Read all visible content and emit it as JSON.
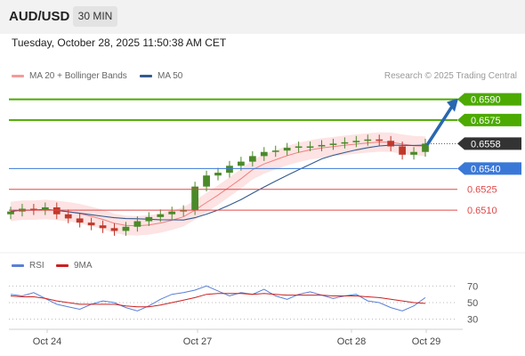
{
  "header": {
    "symbol": "AUD/USD",
    "timeframe": "30 MIN",
    "datetime": "Tuesday, October 28, 2025 11:50:38 AM CET"
  },
  "legend": {
    "ma20_label": "MA 20 + Bollinger Bands",
    "ma50_label": "MA 50",
    "credit": "Research © 2025 Trading Central"
  },
  "rsi_legend": {
    "rsi_label": "RSI",
    "ma_label": "9MA"
  },
  "colors": {
    "resistance": "#4caa00",
    "current": "#333333",
    "pivot": "#3a78d8",
    "support": "#e04848",
    "arrow": "#2a66b0",
    "bollinger_fill": "#fde0e0",
    "ma20": "#f08080",
    "ma50": "#34598f",
    "candle_up": "#4a8a2a",
    "candle_down": "#c0392b",
    "rsi_line": "#5a7fd6",
    "rsi_ma": "#cc2020"
  },
  "chart_data": [
    {
      "type": "candlestick",
      "title": "AUD/USD",
      "x_labels": [
        "Oct 24",
        "Oct 27",
        "Oct 28",
        "Oct 29"
      ],
      "ylim": [
        0.6485,
        0.66
      ],
      "levels": [
        {
          "role": "resistance",
          "value": "0.6590"
        },
        {
          "role": "resistance",
          "value": "0.6575"
        },
        {
          "role": "current",
          "value": "0.6558"
        },
        {
          "role": "pivot",
          "value": "0.6540"
        },
        {
          "role": "support",
          "value": "0.6525"
        },
        {
          "role": "support",
          "value": "0.6510"
        }
      ],
      "price_series": [
        0.6509,
        0.6511,
        0.651,
        0.6512,
        0.6507,
        0.6504,
        0.6501,
        0.6499,
        0.6497,
        0.6495,
        0.6498,
        0.6502,
        0.6505,
        0.6507,
        0.6509,
        0.651,
        0.6527,
        0.6535,
        0.6537,
        0.6542,
        0.6545,
        0.6549,
        0.6552,
        0.6553,
        0.6555,
        0.6556,
        0.6556,
        0.6557,
        0.6558,
        0.6559,
        0.656,
        0.6561,
        0.656,
        0.6556,
        0.655,
        0.6552,
        0.6558
      ],
      "forecast_target": 0.659
    },
    {
      "type": "line",
      "title": "RSI",
      "series": [
        {
          "name": "RSI",
          "values": [
            60,
            58,
            62,
            55,
            48,
            45,
            42,
            48,
            52,
            50,
            44,
            40,
            46,
            54,
            60,
            62,
            65,
            70,
            64,
            58,
            62,
            60,
            66,
            58,
            54,
            60,
            63,
            59,
            55,
            58,
            60,
            52,
            50,
            44,
            40,
            46,
            56
          ]
        },
        {
          "name": "9MA",
          "values": [
            58,
            57,
            57,
            55,
            52,
            50,
            48,
            48,
            48,
            48,
            46,
            45,
            45,
            47,
            50,
            53,
            56,
            60,
            61,
            61,
            61,
            60,
            61,
            60,
            59,
            59,
            59,
            59,
            58,
            58,
            58,
            57,
            56,
            54,
            52,
            50,
            49
          ]
        }
      ],
      "ylim": [
        20,
        80
      ],
      "ticks": [
        "70",
        "50",
        "30"
      ]
    }
  ]
}
